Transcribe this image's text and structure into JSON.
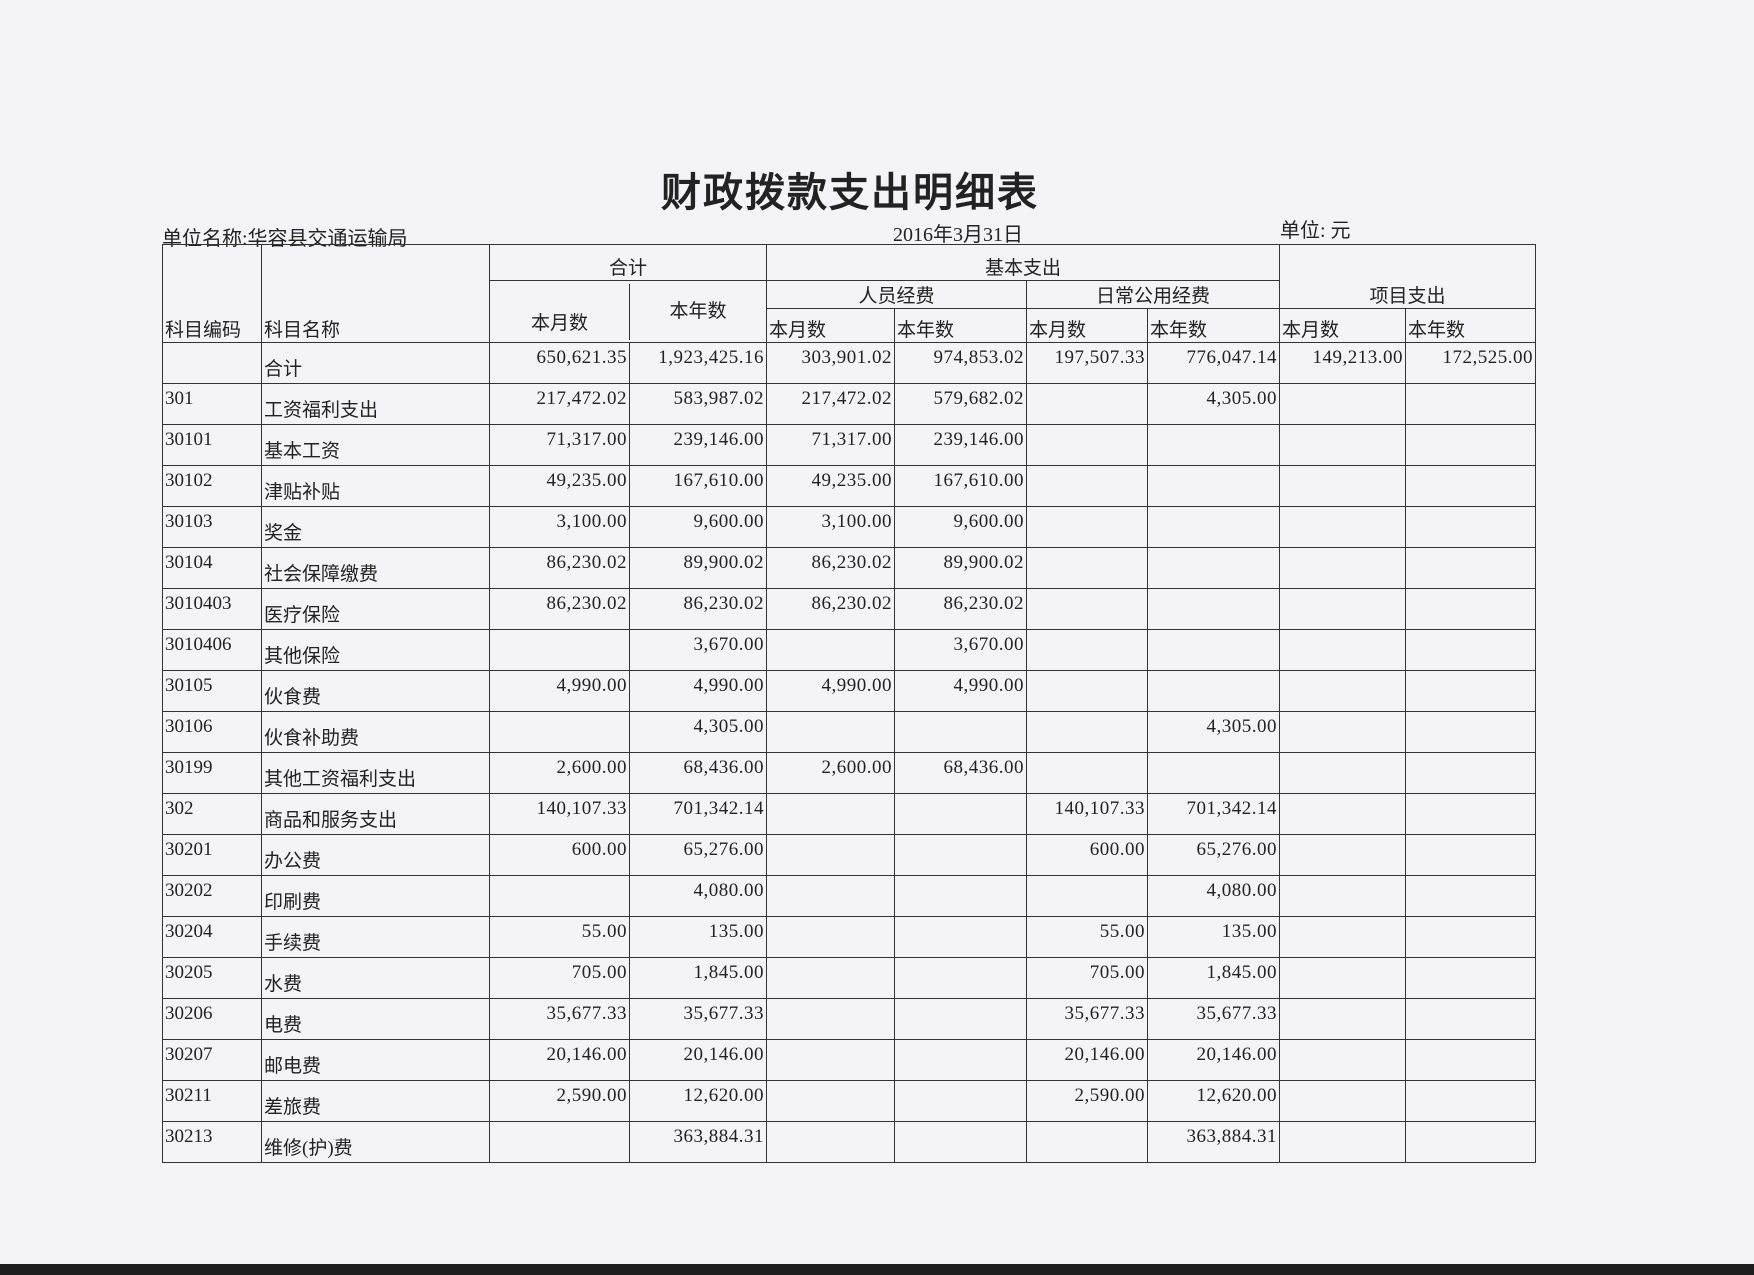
{
  "title": "财政拨款支出明细表",
  "unit_name": "单位名称:华容县交通运输局",
  "date": "2016年3月31日",
  "unit": "单位: 元",
  "headers": {
    "code": "科目编码",
    "name": "科目名称",
    "total": "合计",
    "basic": "基本支出",
    "personnel": "人员经费",
    "daily": "日常公用经费",
    "project": "项目支出",
    "month": "本月数",
    "year": "本年数"
  },
  "rows": [
    [
      "",
      "合计",
      "650,621.35",
      "1,923,425.16",
      "303,901.02",
      "974,853.02",
      "197,507.33",
      "776,047.14",
      "149,213.00",
      "172,525.00"
    ],
    [
      "301",
      "工资福利支出",
      "217,472.02",
      "583,987.02",
      "217,472.02",
      "579,682.02",
      "",
      "4,305.00",
      "",
      ""
    ],
    [
      "30101",
      "基本工资",
      "71,317.00",
      "239,146.00",
      "71,317.00",
      "239,146.00",
      "",
      "",
      "",
      ""
    ],
    [
      "30102",
      "津贴补贴",
      "49,235.00",
      "167,610.00",
      "49,235.00",
      "167,610.00",
      "",
      "",
      "",
      ""
    ],
    [
      "30103",
      "奖金",
      "3,100.00",
      "9,600.00",
      "3,100.00",
      "9,600.00",
      "",
      "",
      "",
      ""
    ],
    [
      "30104",
      "社会保障缴费",
      "86,230.02",
      "89,900.02",
      "86,230.02",
      "89,900.02",
      "",
      "",
      "",
      ""
    ],
    [
      "3010403",
      "医疗保险",
      "86,230.02",
      "86,230.02",
      "86,230.02",
      "86,230.02",
      "",
      "",
      "",
      ""
    ],
    [
      "3010406",
      "其他保险",
      "",
      "3,670.00",
      "",
      "3,670.00",
      "",
      "",
      "",
      ""
    ],
    [
      "30105",
      "伙食费",
      "4,990.00",
      "4,990.00",
      "4,990.00",
      "4,990.00",
      "",
      "",
      "",
      ""
    ],
    [
      "30106",
      "伙食补助费",
      "",
      "4,305.00",
      "",
      "",
      "",
      "4,305.00",
      "",
      ""
    ],
    [
      "30199",
      "其他工资福利支出",
      "2,600.00",
      "68,436.00",
      "2,600.00",
      "68,436.00",
      "",
      "",
      "",
      ""
    ],
    [
      "302",
      "商品和服务支出",
      "140,107.33",
      "701,342.14",
      "",
      "",
      "140,107.33",
      "701,342.14",
      "",
      ""
    ],
    [
      "30201",
      "办公费",
      "600.00",
      "65,276.00",
      "",
      "",
      "600.00",
      "65,276.00",
      "",
      ""
    ],
    [
      "30202",
      "印刷费",
      "",
      "4,080.00",
      "",
      "",
      "",
      "4,080.00",
      "",
      ""
    ],
    [
      "30204",
      "手续费",
      "55.00",
      "135.00",
      "",
      "",
      "55.00",
      "135.00",
      "",
      ""
    ],
    [
      "30205",
      "水费",
      "705.00",
      "1,845.00",
      "",
      "",
      "705.00",
      "1,845.00",
      "",
      ""
    ],
    [
      "30206",
      "电费",
      "35,677.33",
      "35,677.33",
      "",
      "",
      "35,677.33",
      "35,677.33",
      "",
      ""
    ],
    [
      "30207",
      "邮电费",
      "20,146.00",
      "20,146.00",
      "",
      "",
      "20,146.00",
      "20,146.00",
      "",
      ""
    ],
    [
      "30211",
      "差旅费",
      "2,590.00",
      "12,620.00",
      "",
      "",
      "2,590.00",
      "12,620.00",
      "",
      ""
    ],
    [
      "30213",
      "维修(护)费",
      "",
      "363,884.31",
      "",
      "",
      "",
      "363,884.31",
      "",
      ""
    ]
  ]
}
